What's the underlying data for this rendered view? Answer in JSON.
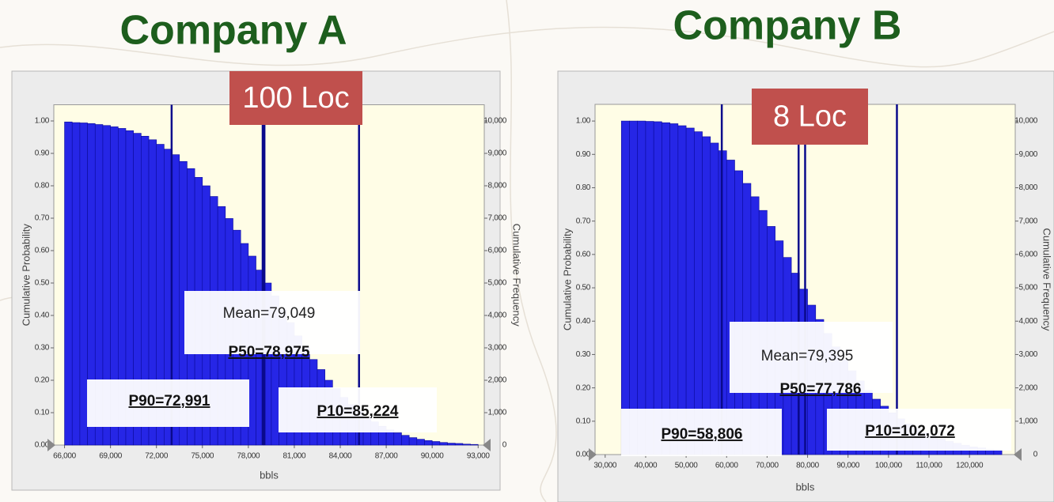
{
  "chart_data": [
    {
      "type": "histogram",
      "title": "Company A",
      "tag": "100 Loc",
      "x_label": "bbls",
      "y_label": "Cumulative Probability",
      "y2_label": "Cumulative Frequency",
      "color": "#2626e6",
      "bins": [
        66000,
        66500,
        67000,
        67500,
        68000,
        68500,
        69000,
        69500,
        70000,
        70500,
        71000,
        71500,
        72000,
        72500,
        73000,
        73500,
        74000,
        74500,
        75000,
        75500,
        76000,
        76500,
        77000,
        77500,
        78000,
        78500,
        79000,
        79500,
        80000,
        80500,
        81000,
        81500,
        82000,
        82500,
        83000,
        83500,
        84000,
        84500,
        85000,
        85500,
        86000,
        86500,
        87000,
        87500,
        88000,
        88500,
        89000,
        89500,
        90000,
        90500,
        91000,
        91500,
        92000,
        92500,
        93000
      ],
      "values": [
        0.997,
        0.995,
        0.994,
        0.992,
        0.989,
        0.986,
        0.982,
        0.977,
        0.97,
        0.962,
        0.953,
        0.942,
        0.928,
        0.913,
        0.896,
        0.875,
        0.853,
        0.826,
        0.8,
        0.767,
        0.736,
        0.699,
        0.663,
        0.622,
        0.583,
        0.54,
        0.5,
        0.46,
        0.417,
        0.378,
        0.337,
        0.301,
        0.264,
        0.233,
        0.2,
        0.174,
        0.147,
        0.125,
        0.104,
        0.087,
        0.072,
        0.058,
        0.047,
        0.038,
        0.03,
        0.023,
        0.018,
        0.014,
        0.011,
        0.008,
        0.006,
        0.005,
        0.003,
        0.002
      ],
      "xlim": [
        65300,
        93400
      ],
      "xticks": [
        {
          "value": 66000,
          "label": "66,000"
        },
        {
          "value": 69000,
          "label": "69,000"
        },
        {
          "value": 72000,
          "label": "72,000"
        },
        {
          "value": 75000,
          "label": "75,000"
        },
        {
          "value": 78000,
          "label": "78,000"
        },
        {
          "value": 81000,
          "label": "81,000"
        },
        {
          "value": 84000,
          "label": "84,000"
        },
        {
          "value": 87000,
          "label": "87,000"
        },
        {
          "value": 90000,
          "label": "90,000"
        },
        {
          "value": 93000,
          "label": "93,000"
        }
      ],
      "ylim": [
        0,
        1.05
      ],
      "yticks": [
        {
          "value": 0,
          "label": "0.00"
        },
        {
          "value": 0.1,
          "label": "0.10"
        },
        {
          "value": 0.2,
          "label": "0.20"
        },
        {
          "value": 0.3,
          "label": "0.30"
        },
        {
          "value": 0.4,
          "label": "0.40"
        },
        {
          "value": 0.5,
          "label": "0.50"
        },
        {
          "value": 0.6,
          "label": "0.60"
        },
        {
          "value": 0.7,
          "label": "0.70"
        },
        {
          "value": 0.8,
          "label": "0.80"
        },
        {
          "value": 0.9,
          "label": "0.90"
        },
        {
          "value": 1,
          "label": "1.00"
        }
      ],
      "y2lim": [
        0,
        10500
      ],
      "y2ticks": [
        0,
        {
          "value": 1000,
          "label": "1,000"
        },
        {
          "value": 2000,
          "label": "2,000"
        },
        {
          "value": 3000,
          "label": "3,000"
        },
        {
          "value": 4000,
          "label": "4,000"
        },
        {
          "value": 5000,
          "label": "5,000"
        },
        {
          "value": 6000,
          "label": "6,000"
        },
        {
          "value": 7000,
          "label": "7,000"
        },
        {
          "value": 8000,
          "label": "8,000"
        },
        {
          "value": 9000,
          "label": "9,000"
        },
        {
          "value": 10000,
          "label": "10,000"
        }
      ],
      "reference_lines": [
        {
          "label": "P90=72,991",
          "value": 72991
        },
        {
          "label": "Mean=79,049",
          "value": 79049
        },
        {
          "label": "P50=78,975",
          "value": 78975
        },
        {
          "label": "P10=85,224",
          "value": 85224
        }
      ]
    },
    {
      "type": "histogram",
      "title": "Company B",
      "tag": "8 Loc",
      "x_label": "bbls",
      "y_label": "Cumulative Probability",
      "y2_label": "Cumulative Frequency",
      "color": "#2626e6",
      "bins": [
        34000,
        36000,
        38000,
        40000,
        42000,
        44000,
        46000,
        48000,
        50000,
        52000,
        54000,
        56000,
        58000,
        60000,
        62000,
        64000,
        66000,
        68000,
        70000,
        72000,
        74000,
        76000,
        78000,
        80000,
        82000,
        84000,
        86000,
        88000,
        90000,
        92000,
        94000,
        96000,
        98000,
        100000,
        102000,
        104000,
        106000,
        108000,
        110000,
        112000,
        114000,
        116000,
        118000,
        120000,
        122000,
        124000,
        126000,
        128000
      ],
      "values": [
        1,
        1,
        1,
        0.999,
        0.998,
        0.995,
        0.992,
        0.986,
        0.979,
        0.968,
        0.953,
        0.934,
        0.911,
        0.883,
        0.851,
        0.813,
        0.773,
        0.732,
        0.684,
        0.641,
        0.591,
        0.544,
        0.496,
        0.448,
        0.405,
        0.363,
        0.323,
        0.284,
        0.251,
        0.221,
        0.192,
        0.166,
        0.145,
        0.125,
        0.107,
        0.092,
        0.078,
        0.066,
        0.056,
        0.047,
        0.04,
        0.034,
        0.028,
        0.023,
        0.02,
        0.016,
        0.014
      ],
      "xlim": [
        27500,
        131300
      ],
      "xticks": [
        {
          "value": 30000,
          "label": "30,000"
        },
        {
          "value": 40000,
          "label": "40,000"
        },
        {
          "value": 50000,
          "label": "50,000"
        },
        {
          "value": 60000,
          "label": "60,000"
        },
        {
          "value": 70000,
          "label": "70,000"
        },
        {
          "value": 80000,
          "label": "80,000"
        },
        {
          "value": 90000,
          "label": "90,000"
        },
        {
          "value": 100000,
          "label": "100,000"
        },
        {
          "value": 110000,
          "label": "110,000"
        },
        {
          "value": 120000,
          "label": "120,000"
        }
      ],
      "ylim": [
        0,
        1.05
      ],
      "yticks": [
        {
          "value": 0,
          "label": "0.00"
        },
        {
          "value": 0.1,
          "label": "0.10"
        },
        {
          "value": 0.2,
          "label": "0.20"
        },
        {
          "value": 0.3,
          "label": "0.30"
        },
        {
          "value": 0.4,
          "label": "0.40"
        },
        {
          "value": 0.5,
          "label": "0.50"
        },
        {
          "value": 0.6,
          "label": "0.60"
        },
        {
          "value": 0.7,
          "label": "0.70"
        },
        {
          "value": 0.8,
          "label": "0.80"
        },
        {
          "value": 0.9,
          "label": "0.90"
        },
        {
          "value": 1,
          "label": "1.00"
        }
      ],
      "y2lim": [
        0,
        10500
      ],
      "y2ticks": [
        0,
        {
          "value": 1000,
          "label": "1,000"
        },
        {
          "value": 2000,
          "label": "2,000"
        },
        {
          "value": 3000,
          "label": "3,000"
        },
        {
          "value": 4000,
          "label": "4,000"
        },
        {
          "value": 5000,
          "label": "5,000"
        },
        {
          "value": 6000,
          "label": "6,000"
        },
        {
          "value": 7000,
          "label": "7,000"
        },
        {
          "value": 8000,
          "label": "8,000"
        },
        {
          "value": 9000,
          "label": "9,000"
        },
        {
          "value": 10000,
          "label": "10,000"
        }
      ],
      "reference_lines": [
        {
          "label": "P90=58,806",
          "value": 58806
        },
        {
          "label": "Mean=79,395",
          "value": 79395
        },
        {
          "label": "P50=77,786",
          "value": 77786
        },
        {
          "label": "P10=102,072",
          "value": 102072
        }
      ]
    }
  ]
}
